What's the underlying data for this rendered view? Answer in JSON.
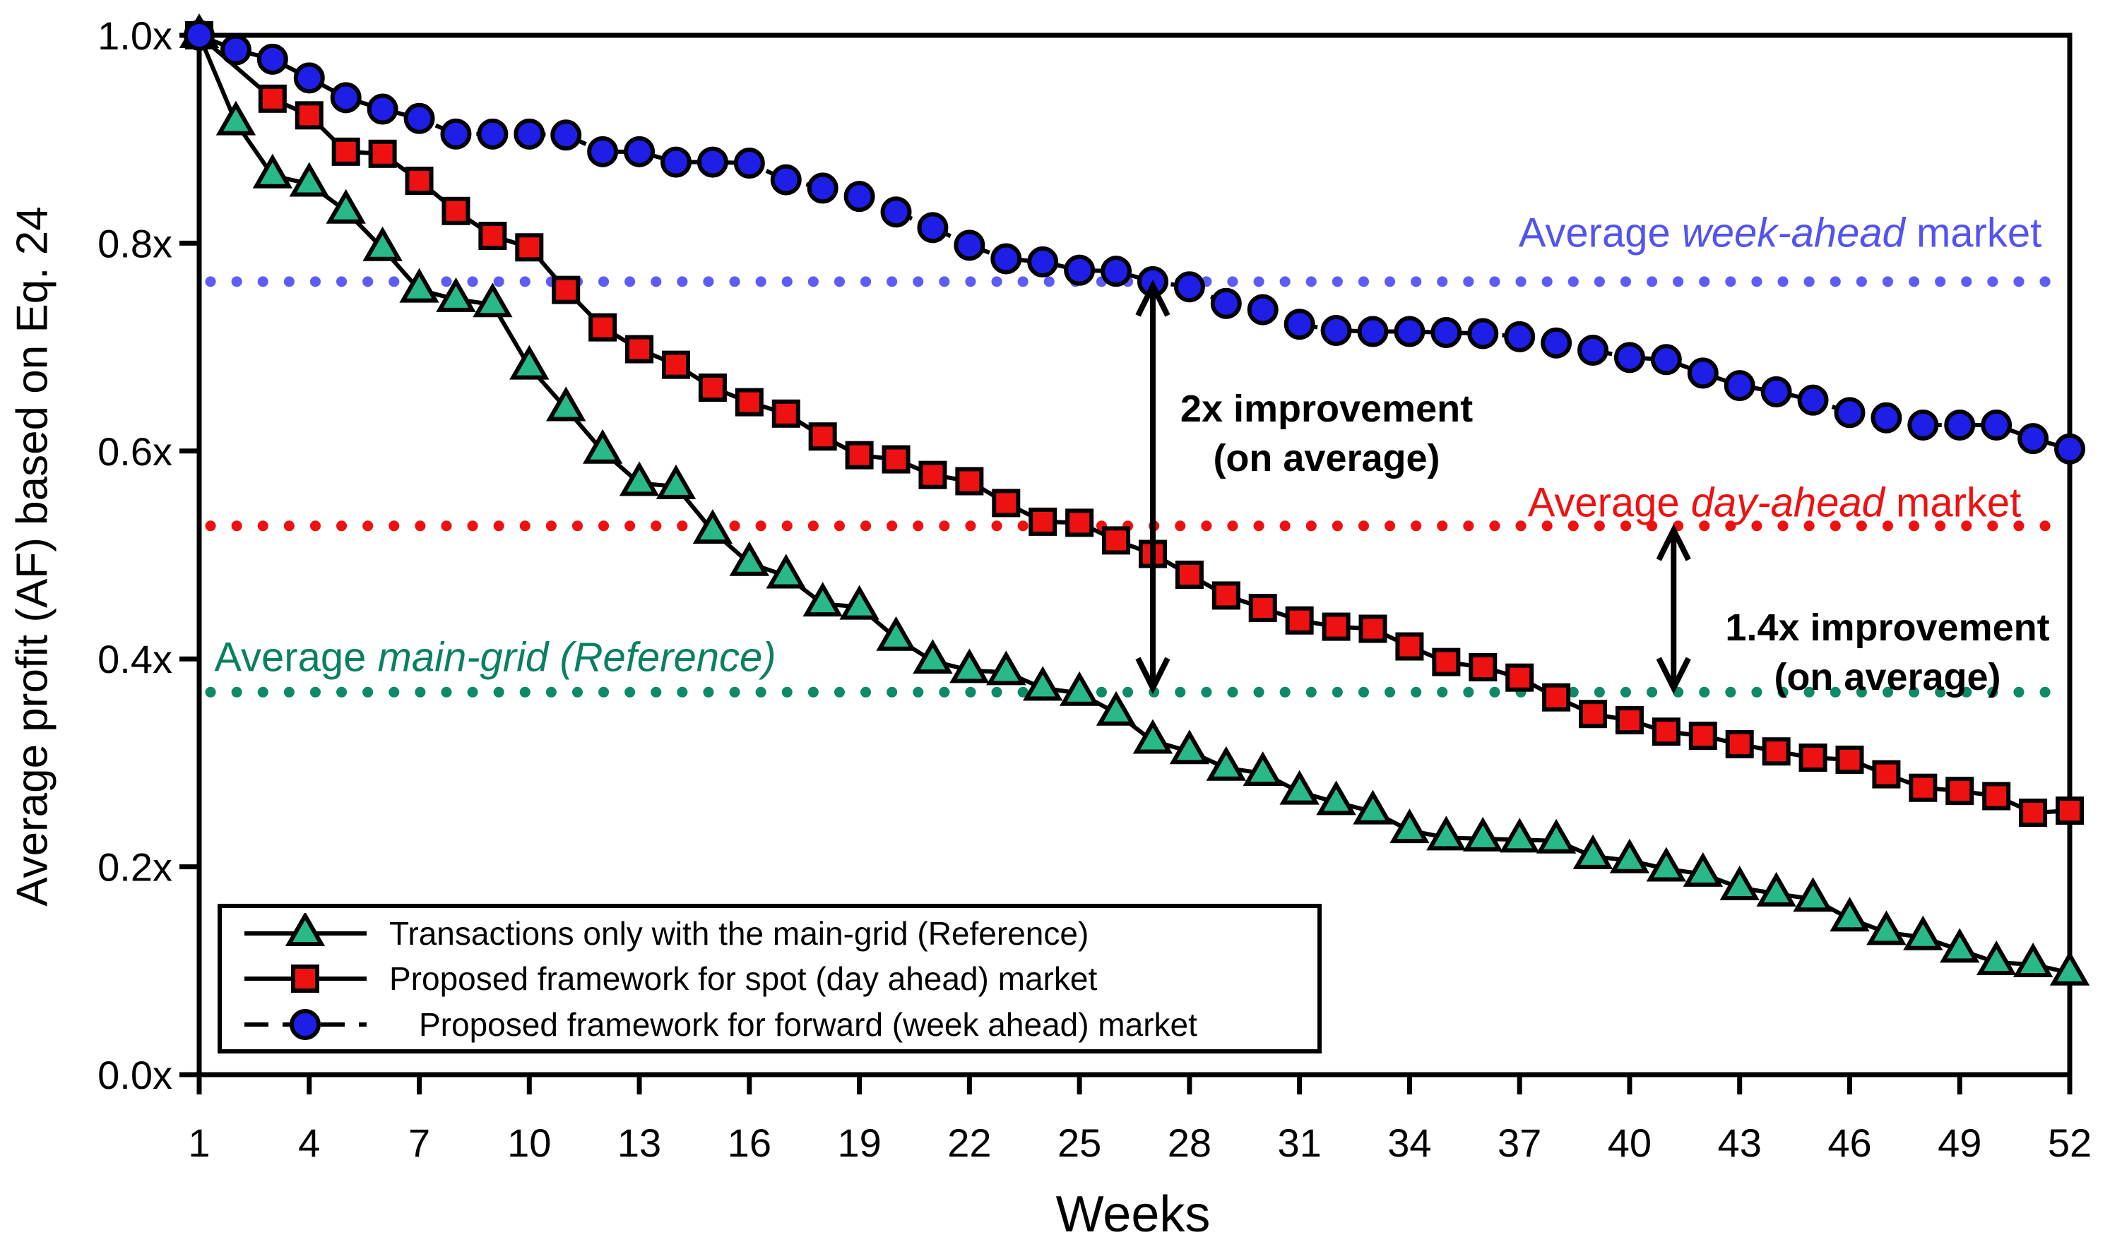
{
  "y_axis": {
    "title": "Average profit (AF) based on Eq. 24",
    "tick_labels": [
      "1.0x",
      "0.8x",
      "0.6x",
      "0.4x",
      "0.2x",
      "0.0x"
    ],
    "tick_values": [
      1.0,
      0.8,
      0.6,
      0.4,
      0.2,
      0.0
    ]
  },
  "x_axis": {
    "title": "Weeks",
    "tick_values": [
      1,
      4,
      7,
      10,
      13,
      16,
      19,
      22,
      25,
      28,
      31,
      34,
      37,
      40,
      43,
      46,
      49,
      52
    ]
  },
  "reference_lines": [
    {
      "id": "week_ahead",
      "value": 0.763,
      "color": "#5d5df5",
      "label": {
        "prefix": "Average ",
        "italic": "week-ahead",
        "suffix": " market"
      },
      "label_color": "#5353ee"
    },
    {
      "id": "day_ahead",
      "value": 0.528,
      "color": "#ee1111",
      "label": {
        "prefix": "Average ",
        "italic": "day-ahead",
        "suffix": " market"
      },
      "label_color": "#ee1111"
    },
    {
      "id": "main_grid",
      "value": 0.368,
      "color": "#0e8a68",
      "label": {
        "prefix": "Average ",
        "italic": "main-grid (Reference)",
        "suffix": ""
      },
      "label_color": "#0a7f62"
    }
  ],
  "annotations": [
    {
      "id": "improvement_2x",
      "line1": "2x improvement",
      "line2": "(on average)",
      "arrow": {
        "week": 27,
        "from_value": 0.763,
        "to_value": 0.368
      }
    },
    {
      "id": "improvement_1_4x",
      "line1": "1.4x improvement",
      "line2": "(on average)",
      "arrow": {
        "week": 41.2,
        "from_value": 0.528,
        "to_value": 0.368
      }
    }
  ],
  "legend": {
    "items": [
      {
        "label": "Transactions only with the main-grid (Reference)",
        "marker": "triangle",
        "line": "solid"
      },
      {
        "label": "Proposed framework for spot (day ahead) market",
        "marker": "square",
        "line": "solid"
      },
      {
        "label": "Proposed framework for forward (week ahead) market",
        "marker": "circle",
        "line": "dashed"
      }
    ]
  },
  "chart_data": {
    "type": "line",
    "title": "",
    "xlabel": "Weeks",
    "ylabel": "Average profit (AF) based on Eq. 24",
    "x_range": [
      1,
      52
    ],
    "y_range": [
      0.0,
      1.0
    ],
    "grid": false,
    "legend_position": "bottom-left",
    "weeks": [
      1,
      2,
      3,
      4,
      5,
      6,
      7,
      8,
      9,
      10,
      11,
      12,
      13,
      14,
      15,
      16,
      17,
      18,
      19,
      20,
      21,
      22,
      23,
      24,
      25,
      26,
      27,
      28,
      29,
      30,
      31,
      32,
      33,
      34,
      35,
      36,
      37,
      38,
      39,
      40,
      41,
      42,
      43,
      44,
      45,
      46,
      47,
      48,
      49,
      50,
      51,
      52
    ],
    "series": [
      {
        "name": "Transactions only with the main-grid (Reference)",
        "marker": "triangle",
        "marker_color": "#29b88a",
        "line_style": "solid",
        "values": [
          1.0,
          0.916,
          0.865,
          0.857,
          0.831,
          0.795,
          0.755,
          0.746,
          0.741,
          0.681,
          0.641,
          0.6,
          0.569,
          0.566,
          0.523,
          0.492,
          0.48,
          0.453,
          0.45,
          0.42,
          0.398,
          0.389,
          0.387,
          0.372,
          0.367,
          0.348,
          0.321,
          0.311,
          0.295,
          0.29,
          0.272,
          0.262,
          0.253,
          0.235,
          0.228,
          0.227,
          0.226,
          0.225,
          0.21,
          0.206,
          0.198,
          0.193,
          0.18,
          0.174,
          0.169,
          0.15,
          0.137,
          0.132,
          0.12,
          0.108,
          0.106,
          0.098
        ]
      },
      {
        "name": "Proposed framework for spot (day ahead) market",
        "marker": "square",
        "marker_color": "#ee1111",
        "line_style": "solid",
        "values": [
          1.0,
          null,
          0.939,
          0.923,
          0.888,
          0.886,
          0.86,
          0.831,
          0.807,
          0.796,
          0.755,
          0.719,
          0.698,
          0.683,
          0.661,
          0.647,
          0.636,
          0.614,
          0.596,
          0.592,
          0.577,
          0.571,
          0.55,
          0.532,
          0.531,
          0.514,
          0.501,
          0.481,
          0.461,
          0.449,
          0.437,
          0.431,
          0.429,
          0.412,
          0.397,
          0.392,
          0.382,
          0.363,
          0.347,
          0.341,
          0.33,
          0.326,
          0.318,
          0.311,
          0.305,
          0.303,
          0.289,
          0.276,
          0.273,
          0.268,
          0.252,
          0.254
        ]
      },
      {
        "name": "Proposed framework for forward (week ahead) market",
        "marker": "circle",
        "marker_color": "#1e1ee6",
        "line_style": "dashed",
        "values": [
          1.0,
          0.986,
          0.977,
          0.959,
          0.94,
          0.929,
          0.92,
          0.905,
          0.905,
          0.905,
          0.904,
          0.888,
          0.888,
          0.878,
          0.878,
          0.877,
          0.861,
          0.853,
          0.845,
          0.83,
          0.815,
          0.798,
          0.785,
          0.782,
          0.774,
          0.773,
          0.763,
          0.758,
          0.742,
          0.736,
          0.722,
          0.716,
          0.715,
          0.715,
          0.714,
          0.713,
          0.71,
          0.704,
          0.697,
          0.69,
          0.688,
          0.675,
          0.663,
          0.657,
          0.649,
          0.637,
          0.632,
          0.625,
          0.625,
          0.625,
          0.612,
          0.602
        ]
      }
    ],
    "reference_values": {
      "week_ahead_market": 0.763,
      "day_ahead_market": 0.528,
      "main_grid_reference": 0.368
    }
  }
}
